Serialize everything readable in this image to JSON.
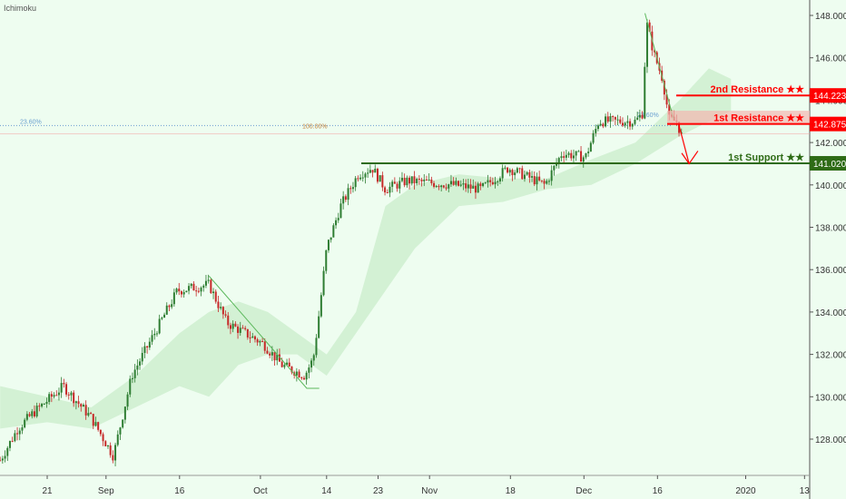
{
  "indicator_label": "Ichimoku",
  "chart_data": {
    "type": "candlestick",
    "title": "Ichimoku",
    "x_unit": "trading days from Aug 21",
    "ylim": [
      126.2,
      148.8
    ],
    "y_ticks": [
      128,
      130,
      132,
      134,
      136,
      138,
      140,
      142,
      144,
      146,
      148
    ],
    "y_tick_labels": [
      "128.000",
      "130.000",
      "132.000",
      "134.000",
      "136.000",
      "138.000",
      "140.000",
      "142.000",
      "144.000",
      "146.000",
      "148.000"
    ],
    "x_ticks": [
      {
        "day": 0,
        "label": "21"
      },
      {
        "day": 8,
        "label": "Sep"
      },
      {
        "day": 18,
        "label": "16"
      },
      {
        "day": 29,
        "label": "Oct"
      },
      {
        "day": 38,
        "label": "14"
      },
      {
        "day": 45,
        "label": "23"
      },
      {
        "day": 52,
        "label": "Nov"
      },
      {
        "day": 63,
        "label": "18"
      },
      {
        "day": 73,
        "label": "Dec"
      },
      {
        "day": 83,
        "label": "16"
      },
      {
        "day": 95,
        "label": "2020"
      },
      {
        "day": 103,
        "label": "13"
      }
    ],
    "price_path": [
      [
        -6.4,
        127.0
      ],
      [
        -4,
        128.5
      ],
      [
        -2,
        129.2
      ],
      [
        2.2,
        130.5
      ],
      [
        6,
        129
      ],
      [
        9,
        127.2
      ],
      [
        11.5,
        131
      ],
      [
        14.6,
        133
      ],
      [
        17.7,
        135
      ],
      [
        22,
        135.3
      ],
      [
        24.4,
        133.5
      ],
      [
        29.4,
        132.5
      ],
      [
        31.9,
        131.5
      ],
      [
        35,
        131
      ],
      [
        36.2,
        131.8
      ],
      [
        37,
        134
      ],
      [
        38,
        137
      ],
      [
        39.9,
        139
      ],
      [
        42.3,
        140.5
      ],
      [
        44.2,
        140.8
      ],
      [
        46,
        139.8
      ],
      [
        49,
        140.2
      ],
      [
        55.3,
        140
      ],
      [
        59,
        139.8
      ],
      [
        62.7,
        140.8
      ],
      [
        67.7,
        140
      ],
      [
        70,
        141.5
      ],
      [
        73.2,
        141.3
      ],
      [
        75,
        143
      ],
      [
        80,
        143
      ],
      [
        81,
        143.4
      ],
      [
        81.5,
        147.7
      ],
      [
        82.5,
        146.2
      ],
      [
        83.7,
        145
      ],
      [
        84.6,
        143.1
      ],
      [
        85.6,
        143.0
      ],
      [
        86.4,
        142.2
      ]
    ],
    "cloud": [
      [
        -6.4,
        130.5,
        128.5
      ],
      [
        0,
        130,
        128.8
      ],
      [
        6,
        129.5,
        128.5
      ],
      [
        12,
        131,
        129.5
      ],
      [
        18,
        133,
        130.5
      ],
      [
        22,
        134,
        130
      ],
      [
        26,
        134.5,
        131.5
      ],
      [
        30,
        134,
        132
      ],
      [
        34,
        133,
        132
      ],
      [
        38,
        132,
        131
      ],
      [
        42,
        134,
        133
      ],
      [
        46,
        139,
        135
      ],
      [
        50,
        140,
        137
      ],
      [
        56,
        140.5,
        139
      ],
      [
        62,
        140.3,
        139.2
      ],
      [
        68,
        140.3,
        139.8
      ],
      [
        74,
        141.2,
        140
      ],
      [
        80,
        142,
        141
      ],
      [
        86,
        144,
        142.3
      ],
      [
        90,
        145.5,
        143
      ],
      [
        93,
        145,
        143.5
      ]
    ],
    "levels": [
      {
        "name": "2nd Resistance ★★",
        "value": 144.223,
        "label": "144.223",
        "color": "#ff0000"
      },
      {
        "name": "1st Resistance ★★",
        "value": 142.875,
        "label": "142.875",
        "color": "#ff0000"
      },
      {
        "name": "1st Support ★★",
        "value": 141.02,
        "label": "141.020",
        "color": "#2e6b16"
      }
    ],
    "fib_labels": [
      {
        "text": "23.60%"
      },
      {
        "text": "100.00%"
      },
      {
        "text": "23.60%"
      }
    ],
    "last_price": 142.4
  }
}
